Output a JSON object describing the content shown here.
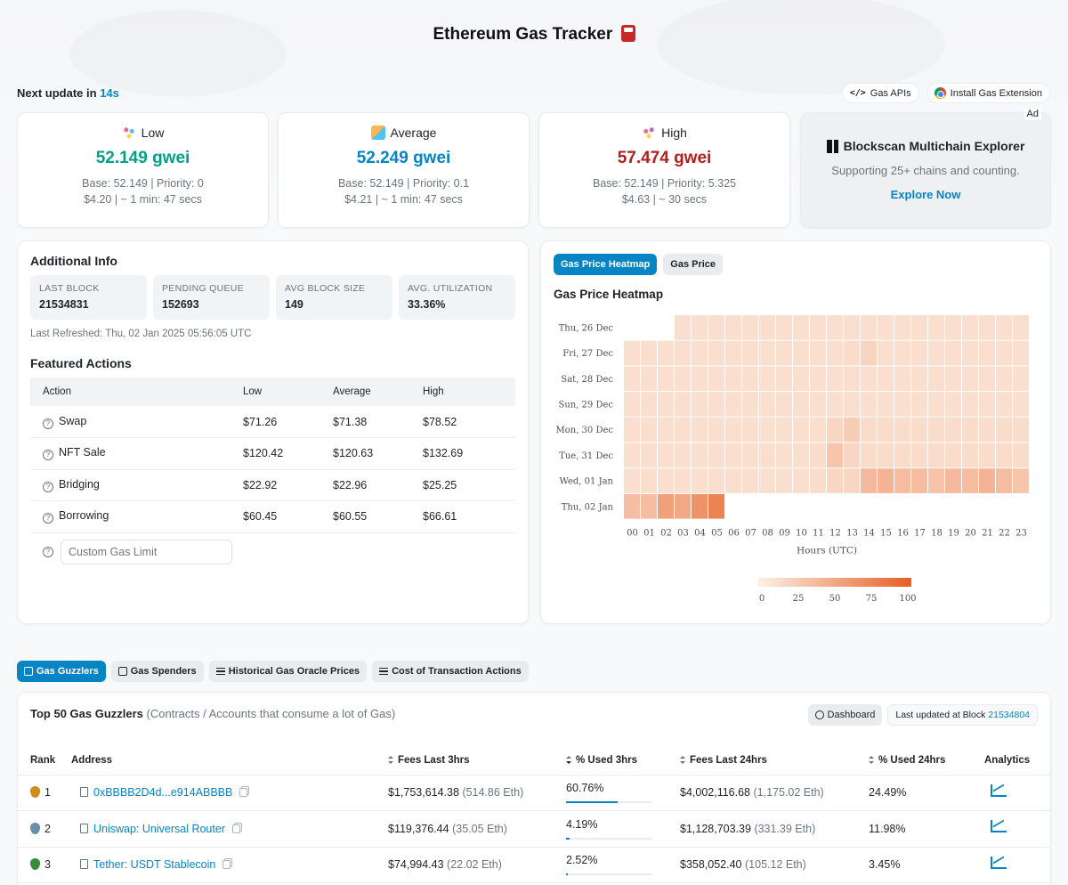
{
  "header": {
    "title": "Ethereum Gas Tracker"
  },
  "update": {
    "prefix": "Next update in",
    "seconds": "14s"
  },
  "top_links": {
    "apis": "Gas APIs",
    "extension": "Install Gas Extension"
  },
  "gas": {
    "low": {
      "label": "Low",
      "price": "52.149 gwei",
      "base": "Base: 52.149 | Priority: 0",
      "cost": "$4.20 | ~ 1 min: 47 secs"
    },
    "avg": {
      "label": "Average",
      "price": "52.249 gwei",
      "base": "Base: 52.149 | Priority: 0.1",
      "cost": "$4.21 | ~ 1 min: 47 secs"
    },
    "high": {
      "label": "High",
      "price": "57.474 gwei",
      "base": "Base: 52.149 | Priority: 5.325",
      "cost": "$4.63 | ~ 30 secs"
    }
  },
  "ad": {
    "tag": "Ad",
    "title": "Blockscan Multichain Explorer",
    "sub": "Supporting 25+ chains and counting.",
    "cta": "Explore Now"
  },
  "info": {
    "title": "Additional Info",
    "stats": [
      {
        "k": "LAST BLOCK",
        "v": "21534831"
      },
      {
        "k": "PENDING QUEUE",
        "v": "152693"
      },
      {
        "k": "AVG BLOCK SIZE",
        "v": "149"
      },
      {
        "k": "AVG. UTILIZATION",
        "v": "33.36%"
      }
    ],
    "refreshed": "Last Refreshed: Thu, 02 Jan 2025 05:56:05 UTC",
    "featured_title": "Featured Actions",
    "cols": [
      "Action",
      "Low",
      "Average",
      "High"
    ],
    "rows": [
      [
        "Swap",
        "$71.26",
        "$71.38",
        "$78.52"
      ],
      [
        "NFT Sale",
        "$120.42",
        "$120.63",
        "$132.69"
      ],
      [
        "Bridging",
        "$22.92",
        "$22.96",
        "$25.25"
      ],
      [
        "Borrowing",
        "$60.45",
        "$60.55",
        "$66.61"
      ]
    ],
    "custom_placeholder": "Custom Gas Limit"
  },
  "heat": {
    "tab_active": "Gas Price Heatmap",
    "tab_other": "Gas Price",
    "title": "Gas Price Heatmap",
    "scale_ticks": [
      "0",
      "25",
      "50",
      "75",
      "100"
    ]
  },
  "chart_data": {
    "type": "heatmap",
    "title": "Gas Price Heatmap",
    "xlabel": "Hours (UTC)",
    "x": [
      "00",
      "01",
      "02",
      "03",
      "04",
      "05",
      "06",
      "07",
      "08",
      "09",
      "10",
      "11",
      "12",
      "13",
      "14",
      "15",
      "16",
      "17",
      "18",
      "19",
      "20",
      "21",
      "22",
      "23"
    ],
    "y": [
      "Thu, 26 Dec",
      "Fri, 27 Dec",
      "Sat, 28 Dec",
      "Sun, 29 Dec",
      "Mon, 30 Dec",
      "Tue, 31 Dec",
      "Wed, 01 Jan",
      "Thu, 02 Jan"
    ],
    "scale_range": [
      0,
      100
    ],
    "values": [
      [
        null,
        null,
        null,
        12,
        12,
        12,
        12,
        12,
        12,
        12,
        12,
        12,
        12,
        12,
        12,
        12,
        12,
        12,
        12,
        12,
        12,
        12,
        12,
        12
      ],
      [
        12,
        12,
        12,
        12,
        12,
        12,
        12,
        12,
        12,
        12,
        12,
        12,
        12,
        14,
        20,
        12,
        12,
        12,
        12,
        12,
        12,
        12,
        12,
        12
      ],
      [
        12,
        12,
        12,
        12,
        12,
        12,
        12,
        12,
        12,
        12,
        12,
        12,
        12,
        12,
        12,
        12,
        12,
        12,
        12,
        12,
        12,
        12,
        12,
        12
      ],
      [
        12,
        12,
        12,
        12,
        12,
        12,
        12,
        12,
        12,
        12,
        12,
        12,
        12,
        12,
        12,
        12,
        12,
        12,
        12,
        12,
        12,
        12,
        12,
        12
      ],
      [
        12,
        12,
        12,
        12,
        12,
        12,
        12,
        12,
        12,
        12,
        12,
        12,
        18,
        25,
        14,
        14,
        14,
        14,
        14,
        14,
        14,
        14,
        14,
        14
      ],
      [
        12,
        12,
        12,
        12,
        12,
        12,
        12,
        12,
        12,
        12,
        12,
        14,
        30,
        18,
        14,
        14,
        14,
        14,
        14,
        14,
        14,
        14,
        14,
        14
      ],
      [
        12,
        12,
        12,
        12,
        12,
        12,
        12,
        12,
        12,
        12,
        12,
        14,
        18,
        18,
        38,
        42,
        36,
        36,
        32,
        38,
        36,
        42,
        36,
        30
      ],
      [
        35,
        35,
        55,
        50,
        65,
        75,
        null,
        null,
        null,
        null,
        null,
        null,
        null,
        null,
        null,
        null,
        null,
        null,
        null,
        null,
        null,
        null,
        null,
        null
      ]
    ]
  },
  "main_tabs": [
    "Gas Guzzlers",
    "Gas Spenders",
    "Historical Gas Oracle Prices",
    "Cost of Transaction Actions"
  ],
  "guzzlers": {
    "title": "Top 50 Gas Guzzlers",
    "subtitle": "(Contracts / Accounts that consume a lot of Gas)",
    "dashboard": "Dashboard",
    "last_updated": "Last updated at Block",
    "block": "21534804",
    "cols": [
      "Rank",
      "Address",
      "Fees Last 3hrs",
      "% Used 3hrs",
      "Fees Last 24hrs",
      "% Used 24hrs",
      "Analytics"
    ],
    "rows": [
      {
        "rank": "1",
        "address": "0xBBBB2D4d...e914ABBBB",
        "fees3": "$1,753,614.38",
        "eth3": "(514.86 Eth)",
        "pct3": "60.76%",
        "pct3_value": 60.76,
        "fees24": "$4,002,116.68",
        "eth24": "(1,175.02 Eth)",
        "pct24": "24.49%"
      },
      {
        "rank": "2",
        "address": "Uniswap: Universal Router",
        "fees3": "$119,376.44",
        "eth3": "(35.05 Eth)",
        "pct3": "4.19%",
        "pct3_value": 4.19,
        "fees24": "$1,128,703.39",
        "eth24": "(331.39 Eth)",
        "pct24": "11.98%"
      },
      {
        "rank": "3",
        "address": "Tether: USDT Stablecoin",
        "fees3": "$74,994.43",
        "eth3": "(22.02 Eth)",
        "pct3": "2.52%",
        "pct3_value": 2.52,
        "fees24": "$358,052.40",
        "eth24": "(105.12 Eth)",
        "pct24": "3.45%"
      }
    ]
  }
}
